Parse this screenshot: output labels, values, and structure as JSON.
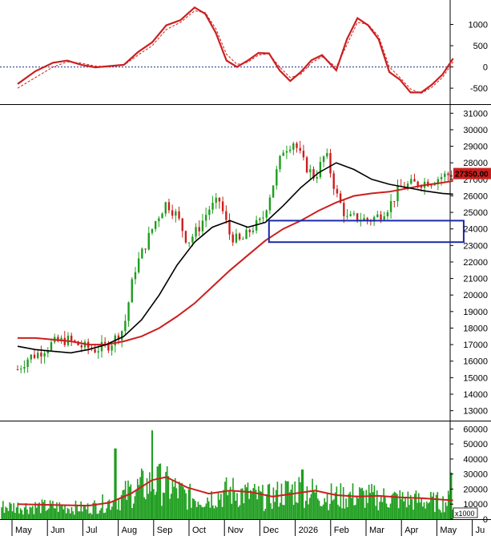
{
  "chart_data": [
    {
      "type": "line",
      "panel": "oscillator",
      "title": "",
      "ylim": [
        -800,
        1500
      ],
      "y_ticks": [
        -500,
        0,
        500,
        1000
      ],
      "y_tick_labels": [
        "-500",
        "0",
        "500",
        "1000"
      ],
      "zero_line": {
        "value": 0,
        "color": "#1f2a8a",
        "style": "dotted"
      },
      "series": [
        {
          "role": "main",
          "color": "#cc1f1f",
          "x": [
            0,
            0.5,
            1,
            1.4,
            1.8,
            2.2,
            2.6,
            3.0,
            3.4,
            3.8,
            4.2,
            4.6,
            5.0,
            5.3,
            5.6,
            5.9,
            6.2,
            6.5,
            6.8,
            7.1,
            7.4,
            7.7,
            8.0,
            8.3,
            8.6,
            9.0,
            9.3,
            9.6,
            9.9,
            10.2,
            10.5,
            10.8,
            11.1,
            11.4,
            11.7,
            12.0,
            12.3
          ],
          "y": [
            -400,
            -100,
            100,
            150,
            50,
            -10,
            20,
            50,
            350,
            580,
            980,
            1100,
            1400,
            1250,
            800,
            150,
            0,
            150,
            330,
            320,
            -80,
            -330,
            -120,
            160,
            280,
            -80,
            650,
            1150,
            980,
            650,
            -120,
            -300,
            -600,
            -600,
            -420,
            -180,
            200
          ]
        },
        {
          "role": "signal",
          "color": "#cc1f1f",
          "style": "dashed",
          "x": [
            0,
            0.5,
            1,
            1.4,
            1.8,
            2.2,
            2.6,
            3.0,
            3.4,
            3.8,
            4.2,
            4.6,
            5.0,
            5.3,
            5.6,
            5.9,
            6.2,
            6.5,
            6.8,
            7.1,
            7.4,
            7.7,
            8.0,
            8.3,
            8.6,
            9.0,
            9.3,
            9.6,
            9.9,
            10.2,
            10.5,
            10.8,
            11.1,
            11.4,
            11.7,
            12.0,
            12.3
          ],
          "y": [
            -500,
            -250,
            0,
            120,
            90,
            20,
            10,
            40,
            280,
            500,
            880,
            1050,
            1320,
            1280,
            900,
            300,
            60,
            110,
            280,
            310,
            0,
            -250,
            -170,
            100,
            240,
            0,
            520,
            1050,
            1000,
            720,
            0,
            -250,
            -520,
            -620,
            -480,
            -250,
            120
          ]
        }
      ]
    },
    {
      "type": "candlestick",
      "panel": "price",
      "ylim": [
        12400,
        31500
      ],
      "y_ticks": [
        13000,
        14000,
        15000,
        16000,
        17000,
        18000,
        19000,
        20000,
        21000,
        22000,
        23000,
        24000,
        25000,
        26000,
        27000,
        28000,
        29000,
        30000,
        31000
      ],
      "y_tick_labels": [
        "13000",
        "14000",
        "15000",
        "16000",
        "17000",
        "18000",
        "19000",
        "20000",
        "21000",
        "22000",
        "23000",
        "24000",
        "25000",
        "26000",
        "27000",
        "28000",
        "29000",
        "30000",
        "31000"
      ],
      "last_price_label": "27350.00",
      "last_price_value": 27350,
      "colors": {
        "up": "#1f9e1f",
        "down": "#cc1f1f",
        "ma_fast": "#000000",
        "ma_slow": "#cc1f1f",
        "box": "#1a2aa8",
        "price_tag": "#cc1f1f"
      },
      "price_path": {
        "x": [
          0,
          0.3,
          0.6,
          1.0,
          1.4,
          1.8,
          2.2,
          2.6,
          3.0,
          3.3,
          3.6,
          3.9,
          4.2,
          4.5,
          4.8,
          5.1,
          5.4,
          5.7,
          6.0,
          6.3,
          6.6,
          6.9,
          7.2,
          7.5,
          7.8,
          8.1,
          8.4,
          8.7,
          9.0,
          9.3,
          9.6,
          9.9,
          10.2,
          10.5,
          10.8,
          11.1,
          11.4,
          11.7,
          12.0,
          12.3
        ],
        "y": [
          15500,
          16200,
          16500,
          17100,
          17300,
          16900,
          16700,
          17000,
          18000,
          21500,
          23000,
          24500,
          25600,
          24800,
          23200,
          24000,
          25200,
          25700,
          23600,
          23200,
          24000,
          24500,
          26600,
          28800,
          29300,
          27900,
          27100,
          28600,
          26100,
          24600,
          24700,
          24500,
          24800,
          25400,
          26500,
          26700,
          26800,
          26900,
          27200,
          27350
        ]
      },
      "ma_fast": {
        "x": [
          0,
          0.5,
          1.0,
          1.5,
          2.0,
          2.5,
          3.0,
          3.5,
          4.0,
          4.5,
          5.0,
          5.5,
          6.0,
          6.5,
          7.0,
          7.5,
          8.0,
          8.5,
          9.0,
          9.5,
          10.0,
          10.5,
          11.0,
          11.5,
          12.0,
          12.3
        ],
        "y": [
          16900,
          16700,
          16600,
          16500,
          16700,
          17000,
          17500,
          18500,
          20000,
          21800,
          23200,
          24100,
          24500,
          24100,
          24400,
          25400,
          26500,
          27400,
          28000,
          27600,
          27000,
          26700,
          26500,
          26300,
          26150,
          26100
        ]
      },
      "ma_slow": {
        "x": [
          0,
          0.5,
          1.0,
          1.5,
          2.0,
          2.5,
          3.0,
          3.5,
          4.0,
          4.5,
          5.0,
          5.5,
          6.0,
          6.5,
          7.0,
          7.5,
          8.0,
          8.5,
          9.0,
          9.5,
          10.0,
          10.5,
          11.0,
          11.5,
          12.0,
          12.3
        ],
        "y": [
          17400,
          17400,
          17300,
          17200,
          17000,
          17000,
          17200,
          17500,
          18000,
          18700,
          19500,
          20500,
          21500,
          22400,
          23300,
          24000,
          24500,
          25100,
          25600,
          26000,
          26150,
          26250,
          26450,
          26650,
          26800,
          26900
        ]
      },
      "zone_box": {
        "x0": 7.1,
        "x1": 12.6,
        "y0": 23200,
        "y1": 24500
      }
    },
    {
      "type": "bar",
      "panel": "volume",
      "ylim": [
        0,
        65000
      ],
      "y_ticks": [
        0,
        10000,
        20000,
        30000,
        40000,
        50000,
        60000
      ],
      "y_tick_labels": [
        "0",
        "10000",
        "20000",
        "30000",
        "40000",
        "50000",
        "60000"
      ],
      "unit_label": "x1000",
      "colors": {
        "bars": "#1f9e1f",
        "ma": "#cc1f1f"
      },
      "volume_profile": {
        "x": [
          0,
          1,
          2,
          2.8,
          3.2,
          3.6,
          4.0,
          4.4,
          4.8,
          5.2,
          5.6,
          6.0,
          6.5,
          7.0,
          7.5,
          8.0,
          8.5,
          9.0,
          9.5,
          10.0,
          10.5,
          11.0,
          11.5,
          12.0,
          12.3
        ],
        "y": [
          9000,
          9000,
          8000,
          14000,
          20000,
          24000,
          26000,
          22000,
          16000,
          15000,
          17000,
          20000,
          18000,
          15000,
          19000,
          22000,
          18000,
          16000,
          17000,
          16000,
          15000,
          14000,
          13000,
          12000,
          14000
        ]
      },
      "spikes": [
        {
          "x": 2.75,
          "y": 47000
        },
        {
          "x": 3.8,
          "y": 59000
        },
        {
          "x": 3.95,
          "y": 35000
        },
        {
          "x": 8.05,
          "y": 33000
        },
        {
          "x": 12.25,
          "y": 31000
        }
      ],
      "ma": {
        "x": [
          0,
          1.0,
          2.0,
          2.6,
          3.2,
          3.8,
          4.2,
          4.8,
          5.4,
          6.0,
          6.6,
          7.2,
          7.8,
          8.4,
          9.0,
          9.6,
          10.2,
          10.8,
          11.4,
          12.0,
          12.3
        ],
        "y": [
          10000,
          9500,
          9000,
          11000,
          17000,
          26000,
          28000,
          21000,
          17000,
          19000,
          18000,
          15000,
          17000,
          19000,
          16000,
          15000,
          15500,
          14500,
          14000,
          13000,
          12500
        ]
      }
    }
  ],
  "x_axis": {
    "ticks": [
      0,
      1,
      2,
      3,
      4,
      5,
      6,
      7,
      8,
      9,
      10,
      11,
      12,
      13
    ],
    "labels": [
      "May",
      "Jun",
      "Jul",
      "Aug",
      "Sep",
      "Oct",
      "Nov",
      "Dec",
      "2026",
      "Feb",
      "Mar",
      "Apr",
      "May",
      "Ju"
    ]
  }
}
